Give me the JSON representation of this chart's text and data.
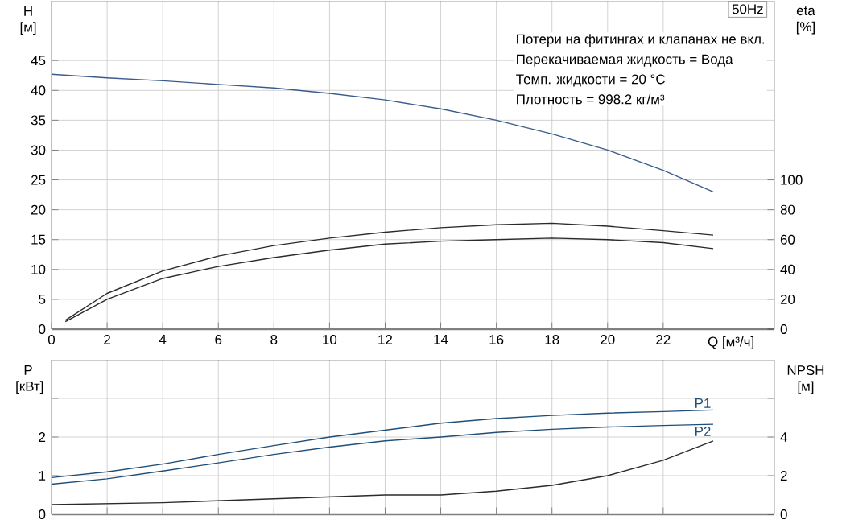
{
  "chart_data": [
    {
      "type": "line",
      "title": "50Hz",
      "annotations": [
        "Потери на фитингах и клапанах не вкл.",
        "Перекачиваемая жидкость = Вода",
        "Темп. жидкости = 20 °C",
        "Плотность = 998.2 кг/м³"
      ],
      "xlabel": "Q [м³/ч]",
      "ylabel": "H [м]",
      "y2label": "eta [%]",
      "xlim": [
        0,
        26
      ],
      "xticks": [
        0,
        2,
        4,
        6,
        8,
        10,
        12,
        14,
        16,
        18,
        20,
        22
      ],
      "ylim": [
        0,
        55
      ],
      "yticks": [
        0,
        5,
        10,
        15,
        20,
        25,
        30,
        35,
        40,
        45
      ],
      "y2lim": [
        0,
        220
      ],
      "y2ticks": [
        0,
        20,
        40,
        60,
        80,
        100
      ],
      "grid": true,
      "series": [
        {
          "color": "#3b5b8c",
          "x": [
            0,
            2,
            4,
            6,
            8,
            10,
            12,
            14,
            16,
            18,
            20,
            22,
            23.8
          ],
          "values": [
            42.7,
            42.1,
            41.6,
            41.0,
            40.4,
            39.5,
            38.4,
            36.9,
            35.0,
            32.7,
            30.0,
            26.6,
            23.0
          ]
        },
        {
          "color": "#2b2b2b",
          "axis": "y2",
          "x": [
            0.5,
            2,
            4,
            6,
            8,
            10,
            12,
            14,
            16,
            18,
            20,
            22,
            23.8
          ],
          "values": [
            6,
            24,
            39,
            49,
            56,
            61,
            65,
            68,
            70,
            71,
            69,
            66,
            63
          ]
        },
        {
          "color": "#2b2b2b",
          "axis": "y2",
          "x": [
            0.5,
            2,
            4,
            6,
            8,
            10,
            12,
            14,
            16,
            18,
            20,
            22,
            23.8
          ],
          "values": [
            5,
            20,
            34,
            42,
            48,
            53,
            57,
            59,
            60,
            61,
            60,
            58,
            54
          ]
        }
      ]
    },
    {
      "type": "line",
      "ylabel": "P [кВт]",
      "y2label": "NPSH [м]",
      "xlim": [
        0,
        26
      ],
      "xticks": [
        0,
        2,
        4,
        6,
        8,
        10,
        12,
        14,
        16,
        18,
        20,
        22
      ],
      "ylim": [
        0,
        4
      ],
      "yticks": [
        0,
        1,
        2,
        {
          "value": 3,
          "label": null
        }
      ],
      "y2lim": [
        0,
        8
      ],
      "y2ticks": [
        0,
        2,
        4,
        {
          "value": 6,
          "label": null
        }
      ],
      "grid": true,
      "tick_labels": "y",
      "series": [
        {
          "name": "P1",
          "color": "#1f4e79",
          "x": [
            0,
            2,
            4,
            6,
            8,
            10,
            12,
            14,
            16,
            18,
            20,
            22,
            23.8
          ],
          "values": [
            0.95,
            1.1,
            1.3,
            1.55,
            1.78,
            2.0,
            2.18,
            2.36,
            2.48,
            2.56,
            2.62,
            2.66,
            2.7
          ]
        },
        {
          "name": "P2",
          "color": "#1f4e79",
          "x": [
            0,
            2,
            4,
            6,
            8,
            10,
            12,
            14,
            16,
            18,
            20,
            22,
            23.8
          ],
          "values": [
            0.78,
            0.92,
            1.12,
            1.33,
            1.55,
            1.74,
            1.9,
            2.0,
            2.12,
            2.2,
            2.26,
            2.3,
            2.33
          ]
        },
        {
          "color": "#2b2b2b",
          "axis": "y2",
          "x": [
            0,
            4,
            8,
            12,
            14,
            16,
            18,
            20,
            22,
            23.8
          ],
          "values": [
            0.5,
            0.6,
            0.8,
            1.0,
            1.0,
            1.2,
            1.5,
            2.0,
            2.8,
            3.8
          ]
        }
      ]
    }
  ]
}
